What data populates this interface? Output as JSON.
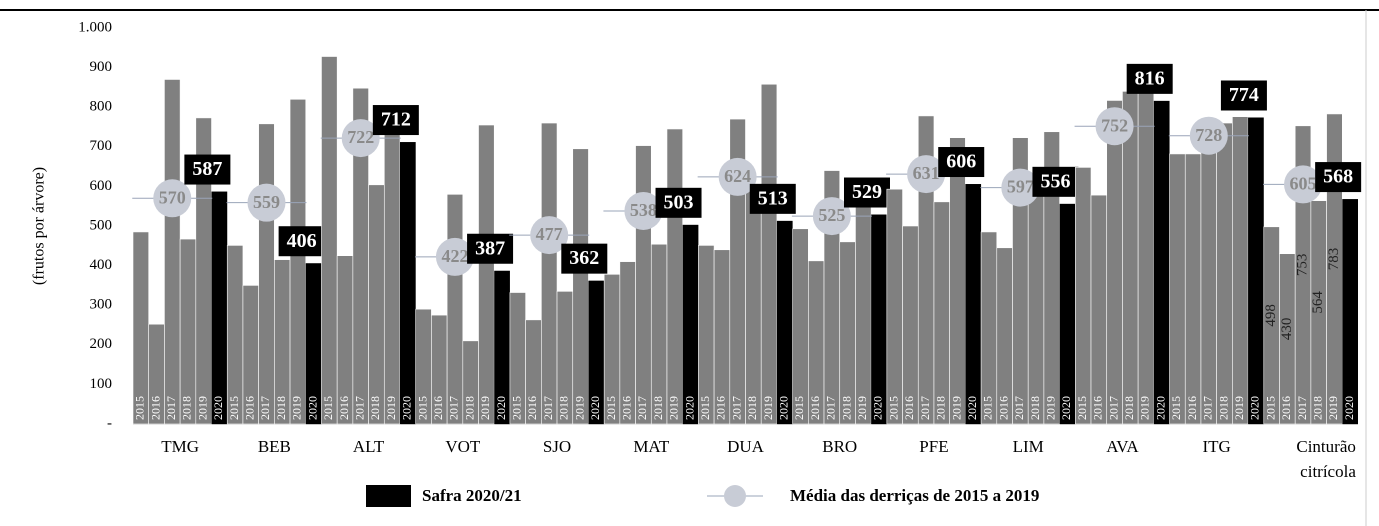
{
  "chart_data": {
    "type": "bar",
    "y_label": "(frutos por árvore)",
    "categories": [
      "TMG",
      "BEB",
      "ALT",
      "VOT",
      "SJO",
      "MAT",
      "DUA",
      "BRO",
      "PFE",
      "LIM",
      "AVA",
      "ITG",
      "Cinturão citrícola"
    ],
    "years": [
      2015,
      2016,
      2017,
      2018,
      2019,
      2020
    ],
    "history": {
      "color": "#808080",
      "values": [
        [
          485,
          252,
          870,
          467,
          773
        ],
        [
          451,
          350,
          758,
          415,
          820
        ],
        [
          928,
          425,
          848,
          604,
          805
        ],
        [
          290,
          275,
          580,
          210,
          755
        ],
        [
          332,
          263,
          760,
          335,
          695
        ],
        [
          378,
          410,
          703,
          454,
          745
        ],
        [
          451,
          440,
          770,
          601,
          858
        ],
        [
          493,
          412,
          640,
          460,
          620
        ],
        [
          593,
          500,
          778,
          561,
          723
        ],
        [
          485,
          445,
          723,
          594,
          738
        ],
        [
          648,
          578,
          817,
          840,
          877
        ],
        [
          682,
          682,
          740,
          760,
          776
        ],
        [
          498,
          430,
          753,
          564,
          783
        ]
      ]
    },
    "series": [
      {
        "name": "Safra 2020/21",
        "color": "#000000",
        "values": [
          587,
          406,
          712,
          387,
          362,
          503,
          513,
          529,
          606,
          556,
          816,
          774,
          568
        ]
      },
      {
        "name": "Média das derriças de 2015 a 2019",
        "color": "#c8ccd6",
        "values": [
          570,
          559,
          722,
          422,
          477,
          538,
          624,
          525,
          631,
          597,
          752,
          728,
          605
        ]
      }
    ],
    "ylim": [
      0,
      1000
    ],
    "yticks": [
      {
        "value": 0,
        "label": "-"
      },
      100,
      200,
      300,
      400,
      500,
      600,
      700,
      800,
      900,
      {
        "value": 1000,
        "label": "1.000"
      }
    ]
  }
}
